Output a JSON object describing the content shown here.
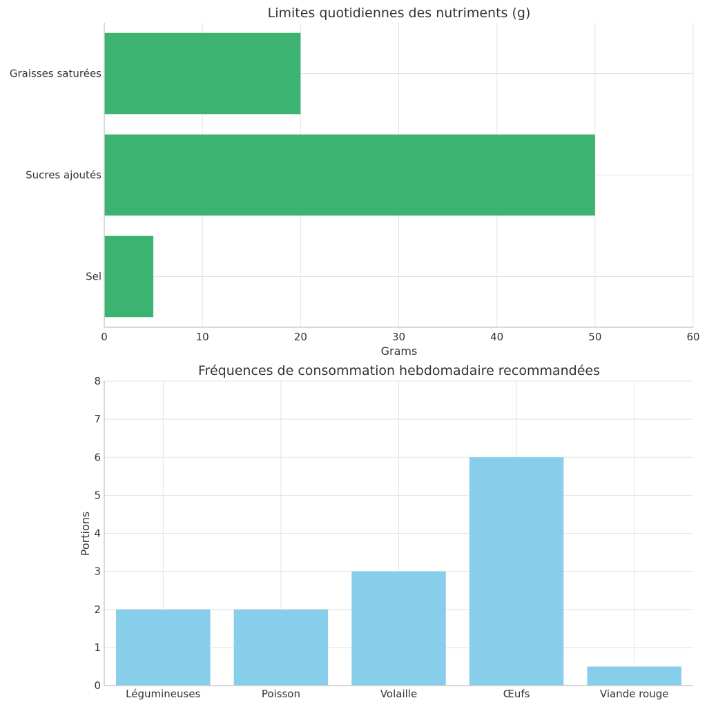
{
  "chart_data": [
    {
      "type": "bar",
      "orientation": "horizontal",
      "title": "Limites quotidiennes des nutriments (g)",
      "xlabel": "Grams",
      "ylabel": "",
      "categories": [
        "Sel",
        "Sucres ajoutés",
        "Graisses saturées"
      ],
      "values": [
        5,
        50,
        20
      ],
      "xlim": [
        0,
        60
      ],
      "xticks": [
        0,
        10,
        20,
        30,
        40,
        50,
        60
      ],
      "grid": true,
      "color": "#3cb371"
    },
    {
      "type": "bar",
      "orientation": "vertical",
      "title": "Fréquences de consommation hebdomadaire recommandées",
      "xlabel": "",
      "ylabel": "Portions",
      "categories": [
        "Légumineuses",
        "Poisson",
        "Volaille",
        "Œufs",
        "Viande rouge"
      ],
      "values": [
        2,
        2,
        3,
        6,
        0.5
      ],
      "ylim": [
        0,
        8
      ],
      "yticks": [
        0,
        1,
        2,
        3,
        4,
        5,
        6,
        7,
        8
      ],
      "grid": true,
      "color": "#87ceeb"
    }
  ]
}
